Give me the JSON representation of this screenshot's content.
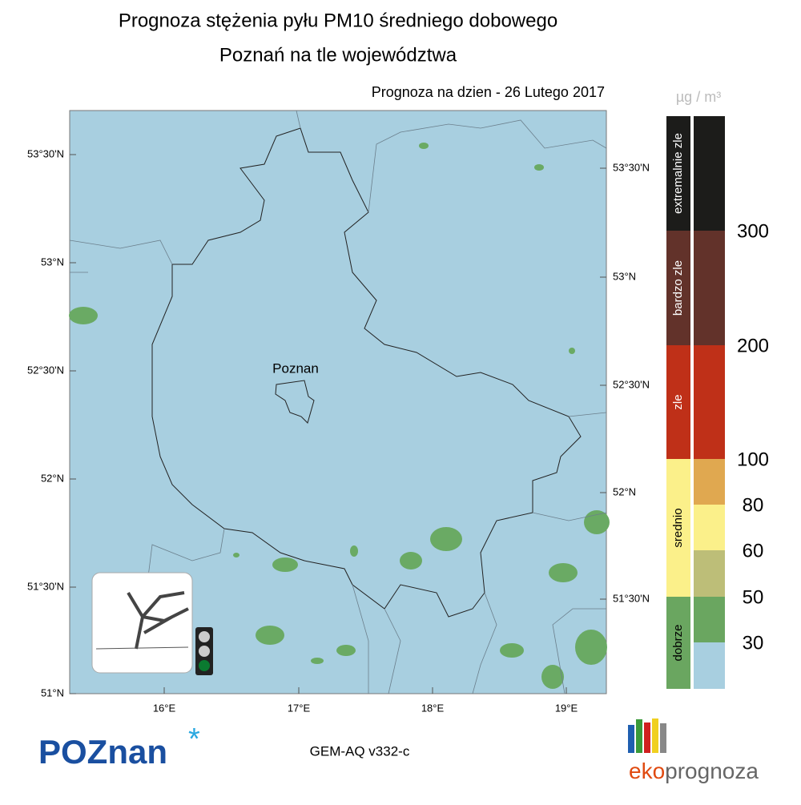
{
  "header": {
    "title": "Prognoza stężenia pyłu PM10 średniego dobowego",
    "subtitle": "Poznań na tle województwa",
    "date_label": "Prognoza na dzien -  26 Lutego 2017"
  },
  "map": {
    "city_label": "Poznan",
    "lat_labels_left": [
      "53°30'N",
      "53°N",
      "52°30'N",
      "52°N",
      "51°30'N",
      "51°N"
    ],
    "lat_labels_right": [
      "53°30'N",
      "53°N",
      "52°30'N",
      "52°N",
      "51°30'N"
    ],
    "lon_labels": [
      "16°E",
      "17°E",
      "18°E",
      "19°E"
    ]
  },
  "legend": {
    "unit": "µg / m³",
    "categories": [
      {
        "name": "extremalnie zle",
        "color": "#1c1c1a"
      },
      {
        "name": "bardzo zle",
        "color": "#62322a"
      },
      {
        "name": "zle",
        "color": "#bf3018"
      },
      {
        "name": "srednio",
        "color": "#fbf08a"
      },
      {
        "name": "dobrze",
        "color": "#6aa660"
      }
    ],
    "scale_colors": [
      "#1c1c1a",
      "#62322a",
      "#bf3018",
      "#e0a850",
      "#fbf08a",
      "#bdbe78",
      "#6aa660",
      "#a8cfe0"
    ],
    "thresholds": [
      300,
      200,
      100,
      80,
      60,
      50,
      30
    ]
  },
  "footer": {
    "logo_left": "POZnan",
    "model": "GEM-AQ v332-c",
    "logo_right_a": "eko",
    "logo_right_b": "prognoza"
  }
}
